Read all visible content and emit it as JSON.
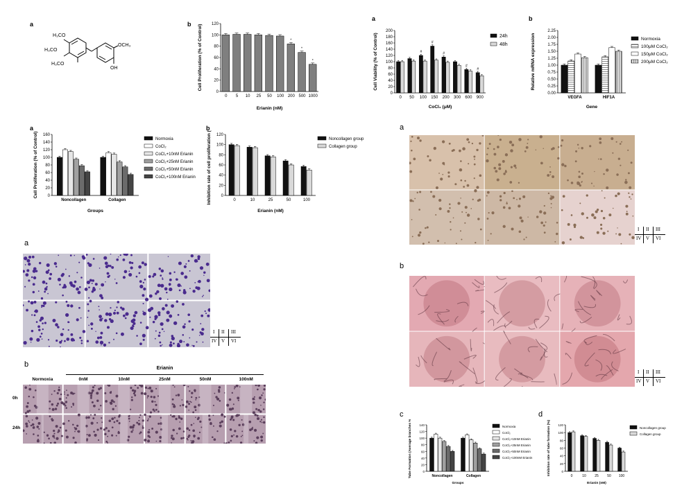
{
  "panel_labels": {
    "p1a": "a",
    "p1b": "b",
    "p2a": "a",
    "p2b": "b",
    "p3a": "a",
    "p3b": "b",
    "p4a": "a",
    "p4b": "b",
    "p5a": "a",
    "p5b": "b",
    "p5c": "c",
    "p5d": "d"
  },
  "structure": {
    "t1": "H₃CO",
    "t2": "H₃CO",
    "t3": "H₃CO",
    "t4": "OCH₃",
    "t5": "OH"
  },
  "wound": {
    "header": "Erianin",
    "cols": [
      "Normoxia",
      "0nM",
      "10nM",
      "25nM",
      "50nM",
      "100nM"
    ],
    "rows": [
      "0h",
      "24h"
    ]
  },
  "roman": {
    "r1": "I",
    "r2": "II",
    "r3": "III",
    "r4": "IV",
    "r5": "V",
    "r6": "VI"
  },
  "colors": {
    "dark": "#111111",
    "gray": "#7f7f7f",
    "light": "#d9d9d9",
    "purple": "#5b3b9a",
    "pink": "#e8b7bf"
  },
  "chart_data": [
    {
      "id": "c1b",
      "type": "bar",
      "categories": [
        "0",
        "5",
        "10",
        "25",
        "50",
        "100",
        "200",
        "500",
        "1000"
      ],
      "values": [
        100,
        101,
        101,
        100,
        99,
        98,
        84,
        69,
        48
      ],
      "sig": [
        "",
        "",
        "",
        "",
        "",
        "",
        "*",
        "*",
        "*"
      ],
      "ylabel": "Cell Proliferation (% of Control)",
      "xlabel": "Erianin (nM)",
      "ylim": [
        0,
        120
      ],
      "yticks": [
        "0",
        "20",
        "40",
        "60",
        "80",
        "100",
        "120"
      ]
    },
    {
      "id": "c2a",
      "type": "bar",
      "categories": [
        "0",
        "50",
        "100",
        "150",
        "200",
        "300",
        "600",
        "900"
      ],
      "series": [
        {
          "name": "24h",
          "values": [
            100,
            110,
            120,
            150,
            115,
            100,
            75,
            65
          ]
        },
        {
          "name": "48h",
          "values": [
            100,
            102,
            102,
            105,
            98,
            88,
            70,
            55
          ]
        }
      ],
      "sig": [
        "",
        "",
        "#",
        "#",
        "#",
        "",
        "#",
        "#"
      ],
      "ylabel": "Cell Viability (% of Control)",
      "xlabel": "CoCl₂ (μM)",
      "ylim": [
        0,
        200
      ],
      "yticks": [
        "0",
        "20",
        "40",
        "60",
        "80",
        "100",
        "120",
        "140",
        "160",
        "180",
        "200"
      ]
    },
    {
      "id": "c2b",
      "type": "bar",
      "categories": [
        "VEGFA",
        "HIF1A"
      ],
      "series": [
        {
          "name": "Normoxia",
          "values": [
            1.0,
            1.0
          ]
        },
        {
          "name": "100μM CoCl₂",
          "values": [
            1.15,
            1.3
          ]
        },
        {
          "name": "150μM CoCl₂",
          "values": [
            1.4,
            1.63
          ]
        },
        {
          "name": "200μM CoCl₂",
          "values": [
            1.27,
            1.5
          ]
        }
      ],
      "ylabel": "Relative mRNA expression",
      "xlabel": "Gene",
      "ylim": [
        0,
        2.25
      ],
      "yticks": [
        "0.00",
        "0.25",
        "0.50",
        "0.75",
        "1.00",
        "1.25",
        "1.50",
        "1.75",
        "2.00",
        "2.25"
      ]
    },
    {
      "id": "c3a",
      "type": "bar",
      "categories": [
        "Noncollagen",
        "Collagen"
      ],
      "series": [
        {
          "name": "Normoxia",
          "values": [
            100,
            100
          ]
        },
        {
          "name": "CoCl₂",
          "values": [
            120,
            112
          ]
        },
        {
          "name": "CoCl₂+10nM Erianin",
          "values": [
            115,
            108
          ]
        },
        {
          "name": "CoCl₂+25nM Erianin",
          "values": [
            95,
            88
          ]
        },
        {
          "name": "CoCl₂+50nM Erianin",
          "values": [
            78,
            75
          ]
        },
        {
          "name": "CoCl₂+100nM Erianin",
          "values": [
            62,
            55
          ]
        }
      ],
      "ylabel": "Cell Proliferation (% of Control)",
      "xlabel": "Groups",
      "ylim": [
        0,
        160
      ],
      "yticks": [
        "0",
        "20",
        "40",
        "60",
        "80",
        "100",
        "120",
        "140",
        "160"
      ]
    },
    {
      "id": "c3b",
      "type": "bar",
      "categories": [
        "0",
        "10",
        "25",
        "50",
        "100"
      ],
      "series": [
        {
          "name": "Noncollagen group",
          "values": [
            100,
            95,
            78,
            68,
            57
          ]
        },
        {
          "name": "Collagen group",
          "values": [
            98,
            94,
            76,
            60,
            50
          ]
        }
      ],
      "ylabel": "Inhibition rate of cell proliferation (%)",
      "xlabel": "Erianin (nM)",
      "ylim": [
        0,
        120
      ],
      "yticks": [
        "0",
        "20",
        "40",
        "60",
        "80",
        "100",
        "120"
      ]
    },
    {
      "id": "c5c",
      "type": "bar",
      "categories": [
        "Noncollagen",
        "Collagen"
      ],
      "series": [
        {
          "name": "Normoxia",
          "values": [
            100,
            100
          ]
        },
        {
          "name": "CoCl₂",
          "values": [
            112,
            110
          ]
        },
        {
          "name": "CoCl₂+10nM Erianin",
          "values": [
            100,
            95
          ]
        },
        {
          "name": "CoCl₂+25nM Erianin",
          "values": [
            90,
            85
          ]
        },
        {
          "name": "CoCl₂+50nM Erianin",
          "values": [
            75,
            68
          ]
        },
        {
          "name": "CoCl₂+100nM Erianin",
          "values": [
            60,
            52
          ]
        }
      ],
      "ylabel": "Tube Formation (Average branches %)",
      "xlabel": "Groups",
      "ylim": [
        0,
        140
      ],
      "yticks": [
        "0",
        "20",
        "40",
        "60",
        "80",
        "100",
        "120",
        "140"
      ]
    },
    {
      "id": "c5d",
      "type": "bar",
      "categories": [
        "0",
        "10",
        "25",
        "50",
        "100"
      ],
      "series": [
        {
          "name": "Noncollagen group",
          "values": [
            100,
            92,
            85,
            75,
            60
          ]
        },
        {
          "name": "Collagen group",
          "values": [
            102,
            90,
            80,
            68,
            50
          ]
        }
      ],
      "ylabel": "Inhibition rate of tube formation (%)",
      "xlabel": "Erianin (nM)",
      "ylim": [
        0,
        120
      ],
      "yticks": [
        "0",
        "20",
        "40",
        "60",
        "80",
        "100",
        "120"
      ]
    }
  ]
}
